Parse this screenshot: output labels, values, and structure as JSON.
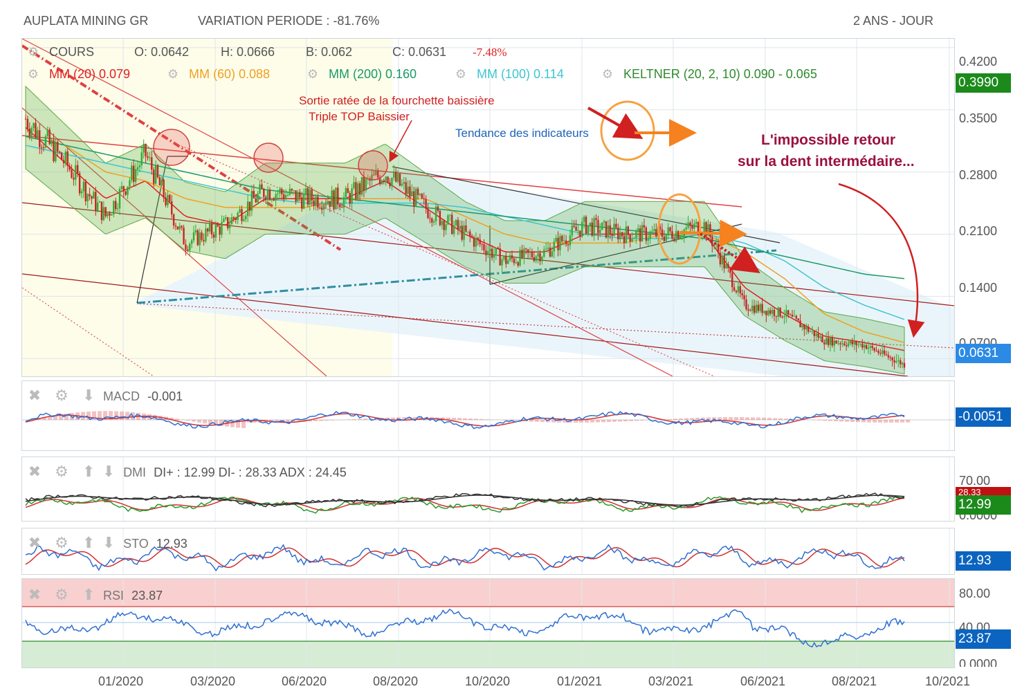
{
  "header": {
    "title": "AUPLATA MINING GR",
    "variation": "VARIATION PERIODE : -81.76%",
    "period": "2 ANS - JOUR"
  },
  "legend": {
    "cours_label": "COURS",
    "open": "O: 0.0642",
    "high": "H: 0.0666",
    "low": "B: 0.062",
    "close": "C: 0.0631",
    "change": "-7.48%",
    "mm20": "MM (20)  0.079",
    "mm60": "MM (60)  0.088",
    "mm200": "MM (200)  0.160",
    "mm100": "MM (100)  0.114",
    "keltner": "KELTNER (20, 2, 10)  0.090 - 0.065"
  },
  "annotations": {
    "fork": "Sortie ratée de la fourchette baissière",
    "triple": "Triple TOP Baissier",
    "trend": "Tendance des indicateurs",
    "impossible1": "L'impossible retour",
    "impossible2": "sur la dent intermédaire..."
  },
  "price_axis": {
    "ticks": [
      "0.4200",
      "0.3500",
      "0.2800",
      "0.2100",
      "0.1400",
      "0.0700"
    ],
    "tag_top": "0.3990",
    "tag_last": "0.0631"
  },
  "indicators": {
    "macd": {
      "label": "MACD",
      "value": "-0.001",
      "tag": "-0.0051"
    },
    "dmi": {
      "label": "DMI",
      "text": "DI+ : 12.99 DI- : 28.33 ADX : 24.45",
      "tag": "12.99",
      "tag_hidden": "28.33",
      "axis_top": "70.00",
      "axis_bottom": "0.0000"
    },
    "sto": {
      "label": "STO",
      "value": "12.93",
      "tag": "12.93"
    },
    "rsi": {
      "label": "RSI",
      "value": "23.87",
      "tag": "23.87",
      "axis": [
        "80.00",
        "40.00",
        "0.0000"
      ]
    }
  },
  "x_axis": [
    "01/2020",
    "03/2020",
    "06/2020",
    "08/2020",
    "10/2020",
    "01/2021",
    "03/2021",
    "06/2021",
    "08/2021",
    "10/2021"
  ],
  "colors": {
    "mm20": "#e02020",
    "mm60": "#f0a020",
    "mm200": "#1a9a6a",
    "mm100": "#3cc6d0",
    "keltner": "#2e8b2e",
    "price_tag": "#0b64c0",
    "top_tag": "#1b8a1b",
    "annotation": "#d02020",
    "annotation_purple": "#9b1040",
    "trend_text": "#1e63b8",
    "orange": "#f7a140"
  },
  "chart_data": {
    "type": "candlestick",
    "title": "AUPLATA MINING GR",
    "ylim": [
      0.05,
      0.43
    ],
    "x": [
      "11/2019",
      "12/2019",
      "01/2020",
      "02/2020",
      "03/2020",
      "04/2020",
      "05/2020",
      "06/2020",
      "07/2020",
      "08/2020",
      "09/2020",
      "10/2020",
      "11/2020",
      "12/2020",
      "01/2021",
      "02/2021",
      "03/2021",
      "04/2021",
      "05/2021",
      "06/2021",
      "07/2021",
      "08/2021",
      "09/2021"
    ],
    "series": [
      {
        "name": "COURS",
        "values": [
          0.34,
          0.29,
          0.23,
          0.3,
          0.2,
          0.22,
          0.26,
          0.25,
          0.25,
          0.28,
          0.24,
          0.21,
          0.18,
          0.19,
          0.22,
          0.21,
          0.21,
          0.22,
          0.13,
          0.12,
          0.09,
          0.085,
          0.0631
        ]
      },
      {
        "name": "MM (20)",
        "values": [
          0.33,
          0.29,
          0.25,
          0.27,
          0.23,
          0.22,
          0.25,
          0.25,
          0.25,
          0.27,
          0.24,
          0.21,
          0.19,
          0.19,
          0.21,
          0.21,
          0.21,
          0.21,
          0.15,
          0.12,
          0.095,
          0.088,
          0.079
        ]
      },
      {
        "name": "MM (60)",
        "values": [
          0.32,
          0.31,
          0.28,
          0.27,
          0.25,
          0.24,
          0.24,
          0.24,
          0.25,
          0.25,
          0.25,
          0.23,
          0.21,
          0.2,
          0.2,
          0.2,
          0.21,
          0.21,
          0.19,
          0.16,
          0.12,
          0.1,
          0.088
        ]
      },
      {
        "name": "MM (100)",
        "values": [
          0.31,
          0.3,
          0.29,
          0.28,
          0.27,
          0.26,
          0.25,
          0.245,
          0.245,
          0.245,
          0.245,
          0.24,
          0.23,
          0.22,
          0.21,
          0.205,
          0.205,
          0.21,
          0.2,
          0.18,
          0.15,
          0.13,
          0.114
        ]
      },
      {
        "name": "MM (200)",
        "values": [
          0.32,
          0.31,
          0.3,
          0.29,
          0.28,
          0.27,
          0.26,
          0.255,
          0.25,
          0.245,
          0.24,
          0.235,
          0.23,
          0.225,
          0.22,
          0.215,
          0.21,
          0.205,
          0.195,
          0.185,
          0.175,
          0.165,
          0.16
        ]
      }
    ],
    "indicator_values": {
      "MACD": -0.001,
      "DI+": 12.99,
      "DI-": 28.33,
      "ADX": 24.45,
      "STO": 12.93,
      "RSI": 23.87
    }
  }
}
